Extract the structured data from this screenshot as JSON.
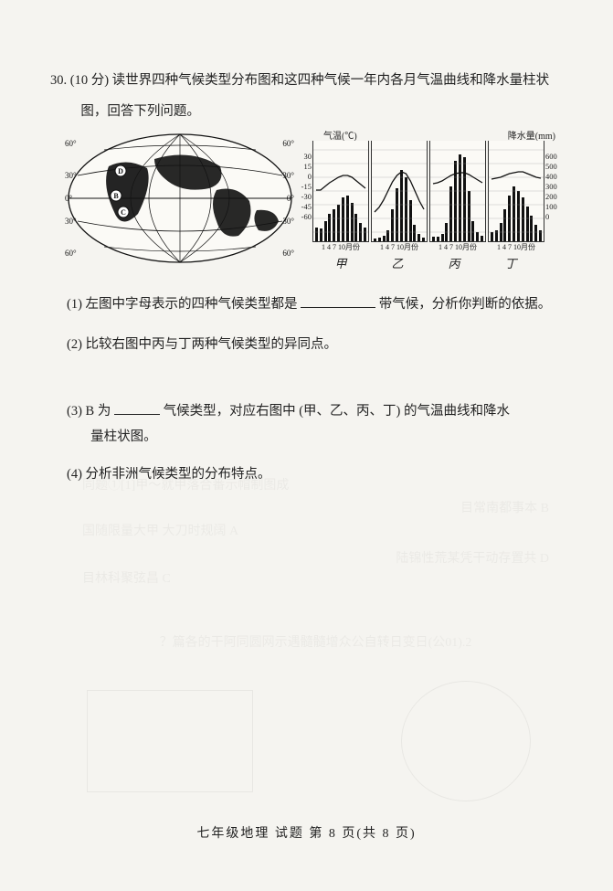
{
  "question": {
    "number": "30.",
    "points": "(10 分)",
    "prompt_line1": "读世界四种气候类型分布图和这四种气候一年内各月气温曲线和降水量柱状",
    "prompt_line2": "图，回答下列问题。"
  },
  "map": {
    "lat_labels": [
      "60°",
      "30°",
      "0°",
      "30°",
      "60°"
    ],
    "lat_y": [
      15,
      50,
      75,
      100,
      135
    ],
    "lon_labels": [
      "60°",
      "0°",
      "60°",
      "0°",
      "60°"
    ],
    "lon_x": [
      30,
      80,
      130,
      180,
      230
    ],
    "point_labels": [
      "D",
      "B",
      "C"
    ],
    "point_pos": [
      [
        63,
        45
      ],
      [
        58,
        72
      ],
      [
        66,
        90
      ]
    ]
  },
  "charts": {
    "temp_title": "气温(℃)",
    "precip_title": "降水量(mm)",
    "temp_ticks": [
      "30",
      "15",
      "0",
      "-15",
      "-30",
      "-45",
      "-60"
    ],
    "precip_ticks": [
      "600",
      "500",
      "400",
      "300",
      "200",
      "100",
      "0"
    ],
    "x_months": "1  4  7 10月份",
    "panel_labels": [
      "甲",
      "乙",
      "丙",
      "丁"
    ],
    "panels": [
      {
        "bars": [
          15,
          14,
          22,
          30,
          35,
          40,
          48,
          50,
          42,
          30,
          20,
          15
        ],
        "temp_y": [
          54,
          54,
          50,
          46,
          43,
          40,
          38,
          38,
          40,
          44,
          48,
          52
        ]
      },
      {
        "bars": [
          3,
          4,
          6,
          12,
          35,
          58,
          78,
          70,
          45,
          18,
          8,
          4
        ],
        "temp_y": [
          78,
          73,
          65,
          55,
          45,
          38,
          34,
          36,
          44,
          55,
          66,
          75
        ]
      },
      {
        "bars": [
          5,
          5,
          8,
          20,
          60,
          88,
          95,
          92,
          55,
          22,
          10,
          6
        ],
        "temp_y": [
          47,
          46,
          44,
          41,
          38,
          36,
          35,
          35,
          37,
          40,
          43,
          46
        ]
      },
      {
        "bars": [
          10,
          12,
          20,
          35,
          50,
          60,
          55,
          48,
          38,
          28,
          18,
          12
        ],
        "temp_y": [
          42,
          41,
          40,
          38,
          36,
          35,
          34,
          34,
          36,
          38,
          40,
          41
        ]
      }
    ]
  },
  "subquestions": {
    "s1_a": "(1) 左图中字母表示的四种气候类型都是",
    "s1_b": "带气候，分析你判断的依据。",
    "s2": "(2) 比较右图中丙与丁两种气候类型的异同点。",
    "s3_a": "(3) B 为",
    "s3_b": "气候类型，对应右图中",
    "s3_c": "(甲、乙、丙、丁) 的气温曲线和降水",
    "s3_d": "量柱状图。",
    "s4": "(4) 分析非洲气候类型的分布特点。"
  },
  "footer": "七年级地理 试题 第 8 页(共 8 页)",
  "ghost": {
    "g1": "同题①[1]甲～就甲落合番示帽制图成",
    "g2": "目常南都事本 B",
    "g3": "国随限量大甲 大刀时规阔 A",
    "g4": "陆锦性荒某凭干动存置共 D",
    "g5": "目林科聚弦昌 C",
    "g6": "？篇各的干阿同圆网示遇髓髓增众公自转日变日(公01).2"
  }
}
